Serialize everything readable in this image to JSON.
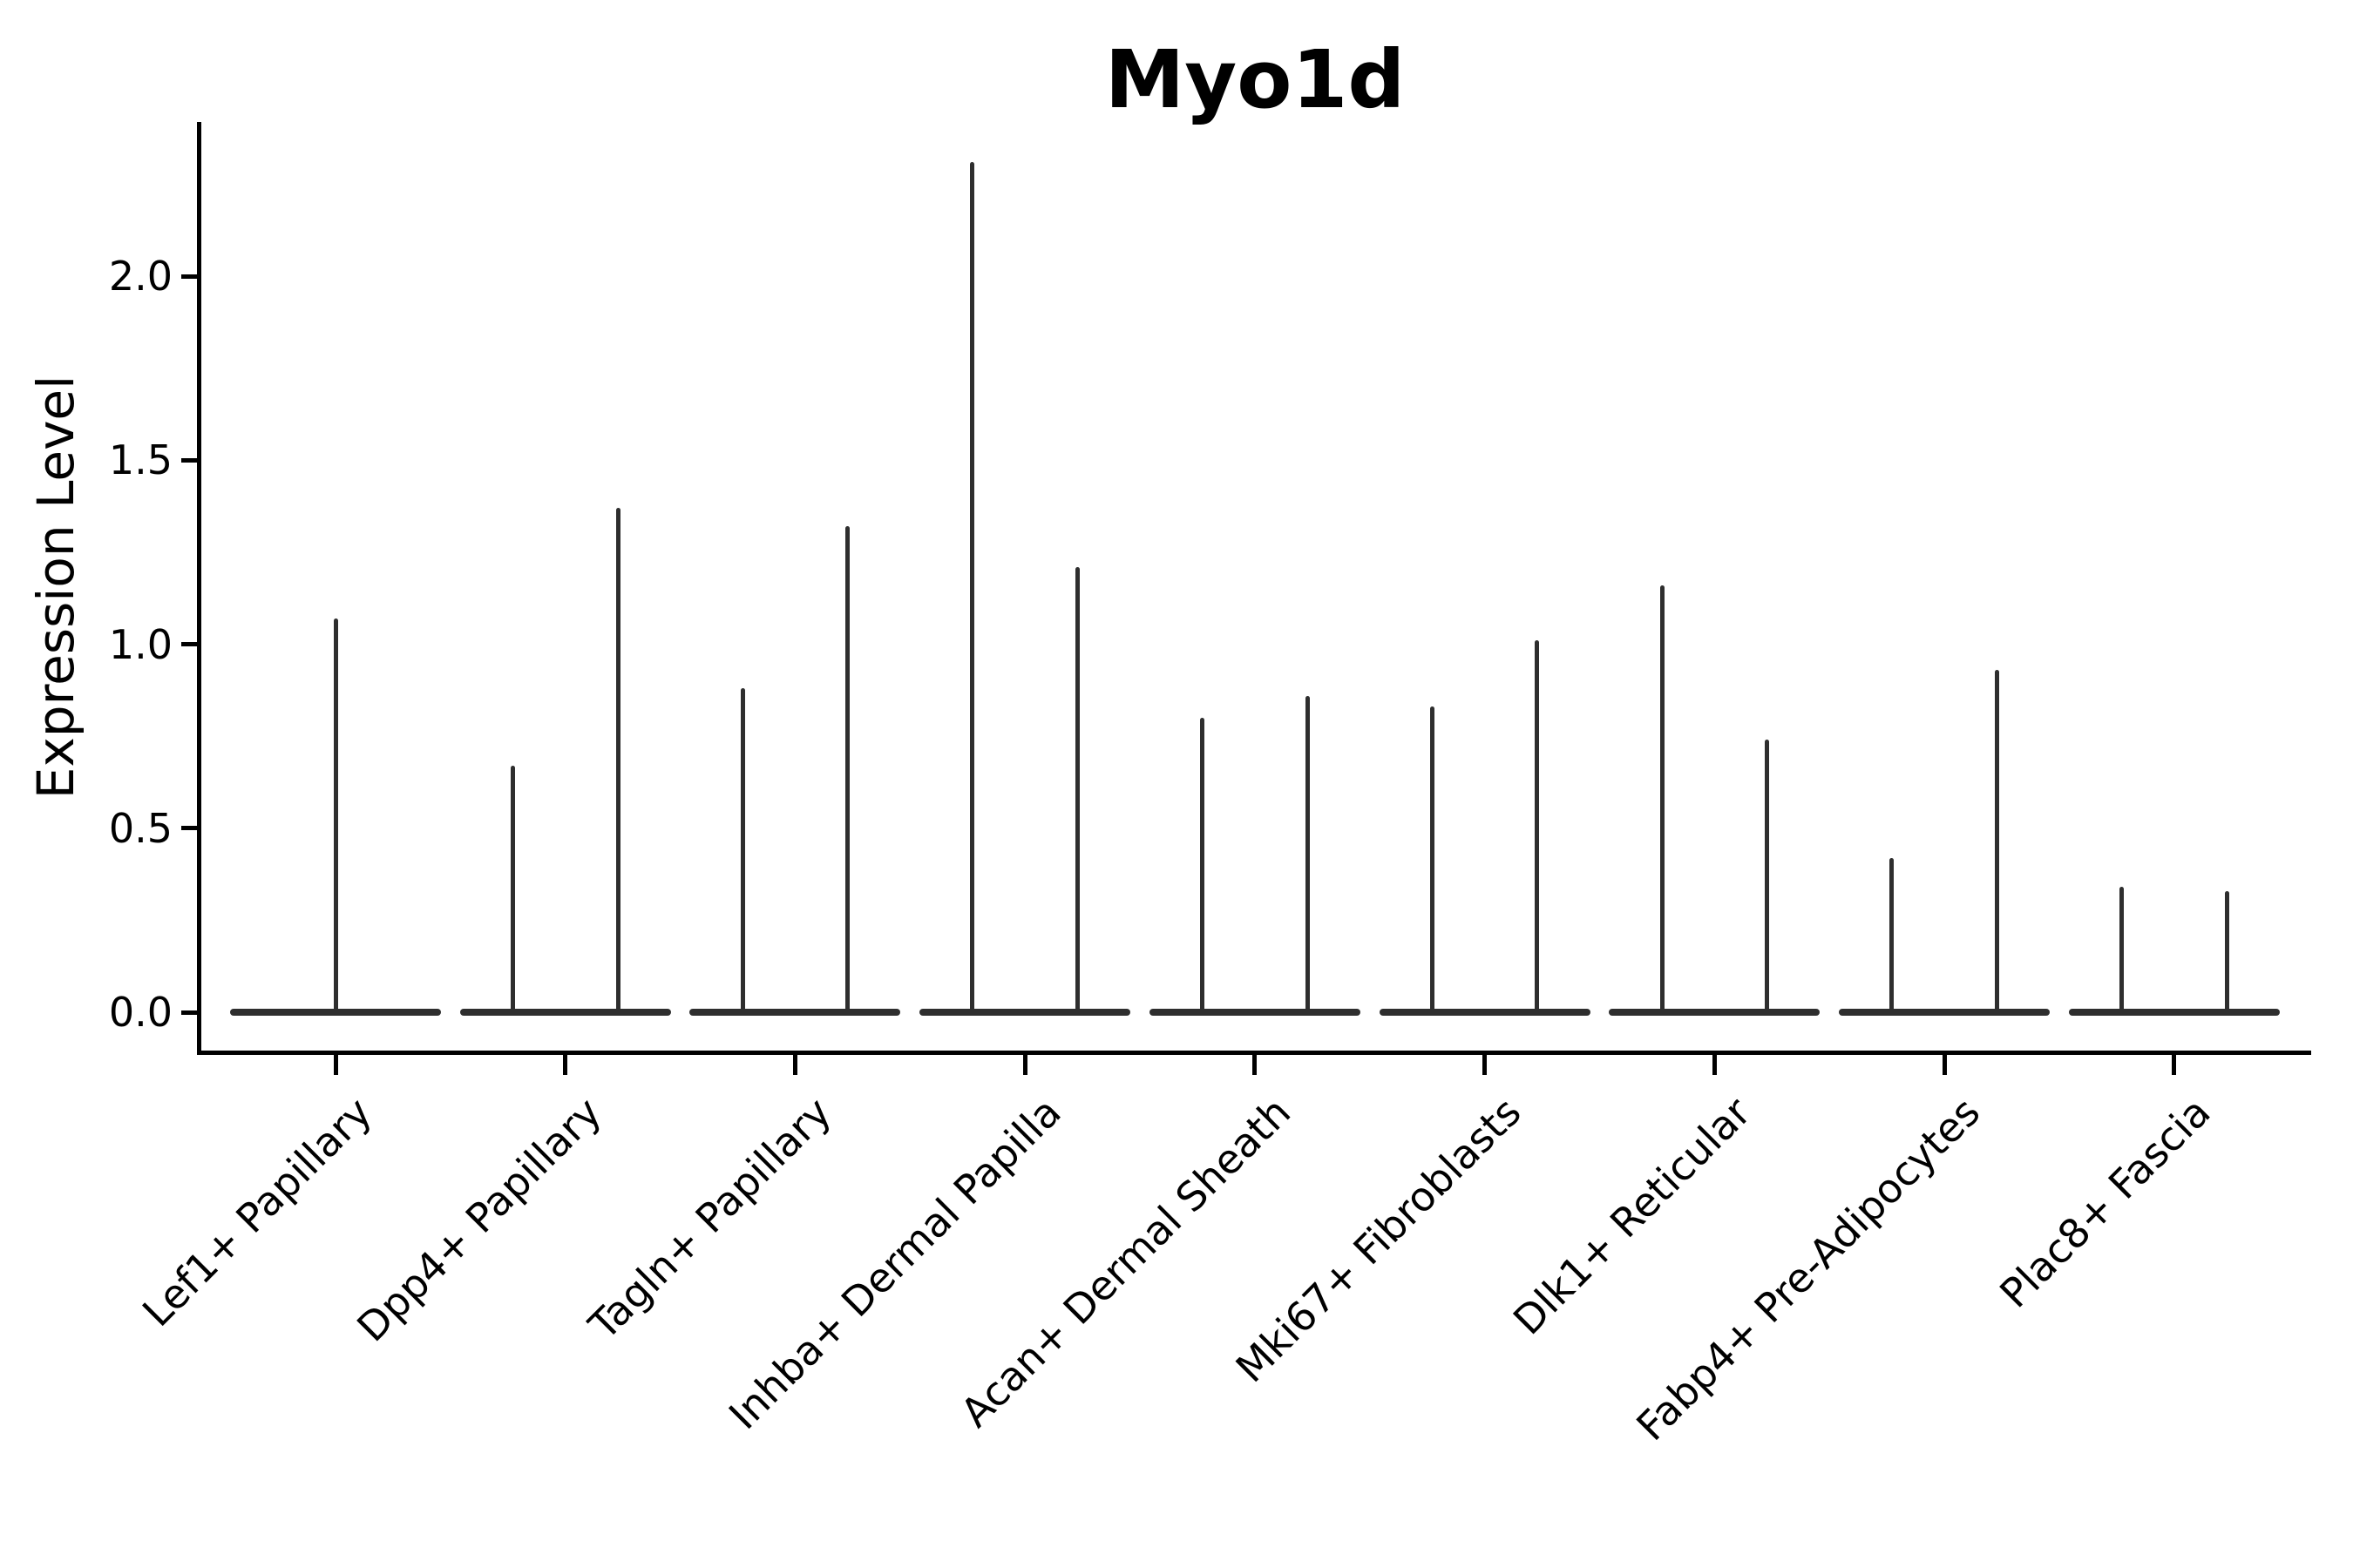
{
  "chart_data": {
    "type": "violin",
    "title": "Myo1d",
    "ylabel": "Expression Level",
    "xlabel": "",
    "yticks": [
      "0.0",
      "0.5",
      "1.0",
      "1.5",
      "2.0"
    ],
    "ytick_values": [
      0.0,
      0.5,
      1.0,
      1.5,
      2.0
    ],
    "ylim": [
      -0.11,
      2.42
    ],
    "grid": false,
    "legend": "none",
    "xtick_rotation": 45,
    "categories": [
      "Lef1+ Papillary",
      "Dpp4+ Papillary",
      "Tagln+ Papillary",
      "Inhba+ Dermal Papilla",
      "Acan+ Dermal Sheath",
      "Mki67+ Fibroblasts",
      "Dlk1+ Reticular",
      "Fabp4+ Pre-Adipocytes",
      "Plac8+ Fascia"
    ],
    "violin_style": "needle-shaped violins: wide flat density at expression 0 with a thin spike rising to the maximum expression value",
    "groups": [
      {
        "category": "Lef1+ Papillary",
        "violins": [
          {
            "position": "center",
            "max_expression": 1.07
          }
        ]
      },
      {
        "category": "Dpp4+ Papillary",
        "violins": [
          {
            "position": "left",
            "max_expression": 0.67
          },
          {
            "position": "right",
            "max_expression": 1.37
          }
        ]
      },
      {
        "category": "Tagln+ Papillary",
        "violins": [
          {
            "position": "left",
            "max_expression": 0.88
          },
          {
            "position": "right",
            "max_expression": 1.32
          }
        ]
      },
      {
        "category": "Inhba+ Dermal Papilla",
        "violins": [
          {
            "position": "left",
            "max_expression": 2.31
          },
          {
            "position": "right",
            "max_expression": 1.21
          }
        ]
      },
      {
        "category": "Acan+ Dermal Sheath",
        "violins": [
          {
            "position": "left",
            "max_expression": 0.8
          },
          {
            "position": "right",
            "max_expression": 0.86
          }
        ]
      },
      {
        "category": "Mki67+ Fibroblasts",
        "violins": [
          {
            "position": "left",
            "max_expression": 0.83
          },
          {
            "position": "right",
            "max_expression": 1.01
          }
        ]
      },
      {
        "category": "Dlk1+ Reticular",
        "violins": [
          {
            "position": "left",
            "max_expression": 1.16
          },
          {
            "position": "right",
            "max_expression": 0.74
          }
        ]
      },
      {
        "category": "Fabp4+ Pre-Adipocytes",
        "violins": [
          {
            "position": "left",
            "max_expression": 0.42
          },
          {
            "position": "right",
            "max_expression": 0.93
          }
        ]
      },
      {
        "category": "Plac8+ Fascia",
        "violins": [
          {
            "position": "left",
            "max_expression": 0.34
          },
          {
            "position": "right",
            "max_expression": 0.33
          }
        ]
      }
    ],
    "colors": {
      "violin": "#2e2e2e",
      "axis": "#000000",
      "text": "#000000",
      "background": "#ffffff"
    }
  }
}
